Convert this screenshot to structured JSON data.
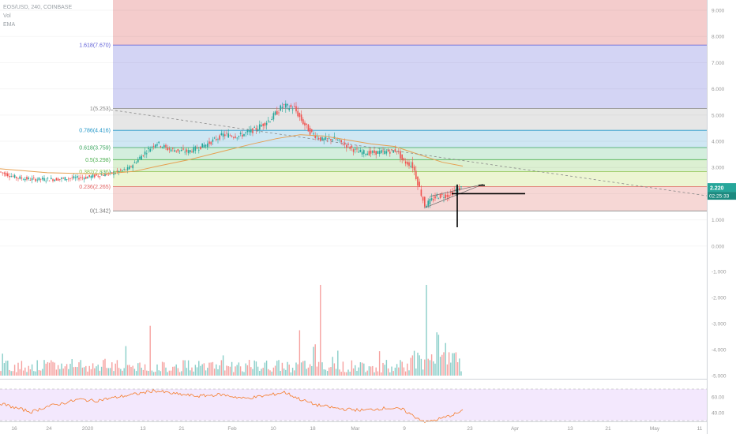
{
  "header": {
    "symbol": "EOS/USD, 240, COINBASE",
    "vol_label": "Vol",
    "ema_label": "EMA"
  },
  "price_badge": {
    "price": "2.220",
    "countdown": "02:25:33"
  },
  "colors": {
    "up": "#26a69a",
    "down": "#ef5350",
    "ema": "#e6a052",
    "rsi": "#f57c2a",
    "fib_line_1618": "#5b5bd6",
    "fib_line_1": "#888888",
    "fib_line_786": "#2196c8",
    "fib_line_618": "#3aa55d",
    "fib_line_05": "#4caf50",
    "fib_line_382": "#8bc34a",
    "fib_line_236": "#e06060",
    "fib_line_0": "#777777"
  },
  "chart_data": [
    {
      "type": "candlestick",
      "title": "EOS/USD, 240, COINBASE",
      "ylim": [
        0.9,
        9.2
      ],
      "y_ticks": [
        "9.000",
        "8.000",
        "7.000",
        "6.000",
        "5.000",
        "4.000",
        "3.000",
        "2.000",
        "1.000"
      ],
      "x_ticks": [
        "16",
        "24",
        "2020",
        "13",
        "21",
        "Feb",
        "10",
        "18",
        "Mar",
        "9",
        "23",
        "Apr",
        "13",
        "21",
        "May",
        "11"
      ],
      "fib_levels": [
        {
          "ratio": 1.618,
          "price": 7.67,
          "label": "1.618(7.670)"
        },
        {
          "ratio": 1,
          "price": 5.253,
          "label": "1(5.253)"
        },
        {
          "ratio": 0.786,
          "price": 4.416,
          "label": "0.786(4.416)"
        },
        {
          "ratio": 0.618,
          "price": 3.759,
          "label": "0.618(3.759)"
        },
        {
          "ratio": 0.5,
          "price": 3.298,
          "label": "0.5(3.298)"
        },
        {
          "ratio": 0.382,
          "price": 2.836,
          "label": "0.382(2.836)"
        },
        {
          "ratio": 0.236,
          "price": 2.265,
          "label": "0.236(2.265)"
        },
        {
          "ratio": 0,
          "price": 1.342,
          "label": "0(1.342)"
        }
      ],
      "price_path": [
        [
          0,
          2.85
        ],
        [
          22,
          2.62
        ],
        [
          40,
          2.55
        ],
        [
          70,
          2.55
        ],
        [
          110,
          2.62
        ],
        [
          145,
          2.78
        ],
        [
          165,
          2.95
        ],
        [
          185,
          3.55
        ],
        [
          200,
          3.95
        ],
        [
          215,
          3.7
        ],
        [
          240,
          3.6
        ],
        [
          265,
          3.9
        ],
        [
          285,
          4.25
        ],
        [
          305,
          4.2
        ],
        [
          325,
          4.45
        ],
        [
          345,
          4.85
        ],
        [
          360,
          5.35
        ],
        [
          375,
          5.25
        ],
        [
          385,
          4.75
        ],
        [
          395,
          4.35
        ],
        [
          410,
          4.05
        ],
        [
          425,
          4.1
        ],
        [
          440,
          3.85
        ],
        [
          455,
          3.6
        ],
        [
          470,
          3.55
        ],
        [
          490,
          3.6
        ],
        [
          505,
          3.65
        ],
        [
          512,
          3.25
        ],
        [
          525,
          3.05
        ],
        [
          533,
          2.25
        ],
        [
          540,
          1.55
        ],
        [
          555,
          1.9
        ],
        [
          570,
          1.95
        ],
        [
          580,
          2.15
        ],
        [
          586,
          2.22
        ]
      ],
      "ema_path": [
        [
          0,
          2.95
        ],
        [
          60,
          2.8
        ],
        [
          130,
          2.75
        ],
        [
          170,
          2.85
        ],
        [
          200,
          3.05
        ],
        [
          240,
          3.3
        ],
        [
          280,
          3.6
        ],
        [
          320,
          3.9
        ],
        [
          350,
          4.1
        ],
        [
          380,
          4.25
        ],
        [
          410,
          4.2
        ],
        [
          440,
          4.05
        ],
        [
          470,
          3.9
        ],
        [
          500,
          3.8
        ],
        [
          530,
          3.5
        ],
        [
          560,
          3.2
        ],
        [
          586,
          3.05
        ]
      ],
      "trendline": [
        [
          140,
          5.2
        ],
        [
          895,
          1.92
        ]
      ]
    },
    {
      "type": "bar",
      "series": [
        {
          "name": "Vol"
        }
      ],
      "y_ticks": [
        "-1.000",
        "-2.000",
        "-3.000",
        "-4.000",
        "-5.000"
      ],
      "spikes": [
        [
          190,
          0.55
        ],
        [
          405,
          1.0
        ],
        [
          540,
          1.0
        ],
        [
          380,
          0.5
        ],
        [
          555,
          0.45
        ]
      ]
    },
    {
      "type": "line",
      "y_ticks": [
        "60.00",
        "40.00"
      ],
      "rsi_path": [
        [
          0,
          52
        ],
        [
          20,
          46
        ],
        [
          40,
          41
        ],
        [
          60,
          48
        ],
        [
          80,
          52
        ],
        [
          100,
          57
        ],
        [
          120,
          55
        ],
        [
          150,
          60
        ],
        [
          180,
          65
        ],
        [
          195,
          68
        ],
        [
          220,
          64
        ],
        [
          250,
          61
        ],
        [
          280,
          63
        ],
        [
          310,
          58
        ],
        [
          340,
          62
        ],
        [
          360,
          66
        ],
        [
          380,
          57
        ],
        [
          400,
          50
        ],
        [
          430,
          45
        ],
        [
          460,
          43
        ],
        [
          490,
          46
        ],
        [
          510,
          44
        ],
        [
          525,
          35
        ],
        [
          540,
          28
        ],
        [
          560,
          33
        ],
        [
          575,
          38
        ],
        [
          586,
          42
        ]
      ]
    }
  ]
}
